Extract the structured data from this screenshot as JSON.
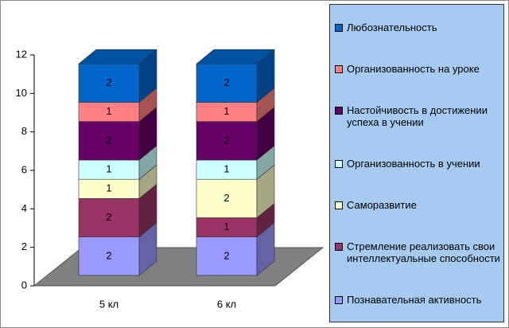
{
  "chart_data": {
    "type": "bar3d_stacked",
    "categories": [
      "5 кл",
      "6 кл"
    ],
    "series": [
      {
        "name": "Познавательная активность",
        "color": "#9999ff",
        "values": [
          2,
          2
        ]
      },
      {
        "name": "Стремление реализовать свои интеллектуальные способности",
        "color": "#993366",
        "values": [
          2,
          1
        ]
      },
      {
        "name": "Саморазвитие",
        "color": "#ffffcc",
        "values": [
          1,
          2
        ]
      },
      {
        "name": "Организованность в учении",
        "color": "#ccffff",
        "values": [
          1,
          1
        ]
      },
      {
        "name": "Настойчивость в достижении успеха в учении",
        "color": "#660066",
        "values": [
          2,
          2
        ]
      },
      {
        "name": "Организованность на уроке",
        "color": "#ff8080",
        "values": [
          1,
          1
        ]
      },
      {
        "name": "Любознательность",
        "color": "#0066cc",
        "values": [
          2,
          2
        ]
      }
    ],
    "ylim": [
      0,
      12
    ],
    "yticks": [
      0,
      2,
      4,
      6,
      8,
      10,
      12
    ]
  }
}
